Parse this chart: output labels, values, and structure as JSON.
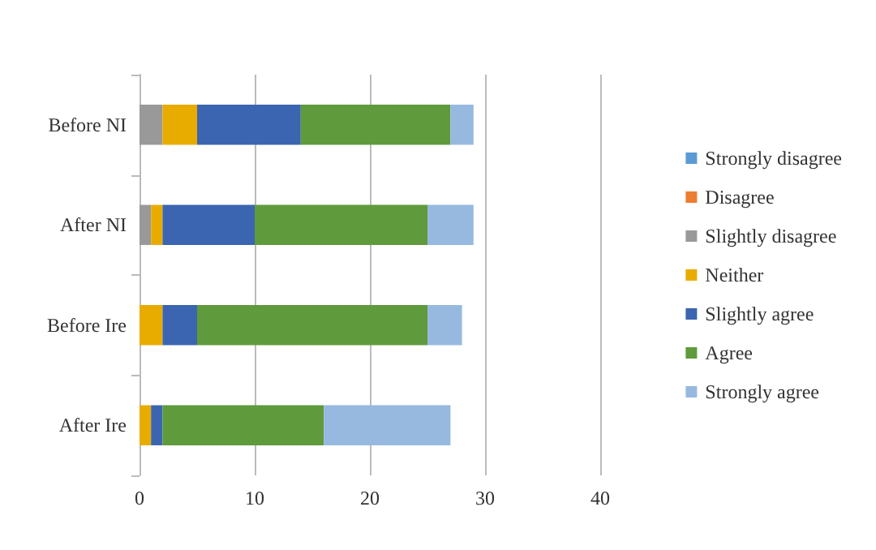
{
  "chart_data": {
    "type": "bar",
    "orientation": "horizontal",
    "stacked": true,
    "categories": [
      "Before NI",
      "After NI",
      "Before Ire",
      "After Ire"
    ],
    "series": [
      {
        "name": "Strongly disagree",
        "color": "#5b9bd5",
        "values": [
          0,
          0,
          0,
          0
        ]
      },
      {
        "name": "Disagree",
        "color": "#ed7d31",
        "values": [
          0,
          0,
          0,
          0
        ]
      },
      {
        "name": "Slightly disagree",
        "color": "#999999",
        "values": [
          2,
          1,
          0,
          0
        ]
      },
      {
        "name": "Neither",
        "color": "#e8ac00",
        "values": [
          3,
          1,
          2,
          1
        ]
      },
      {
        "name": "Slightly agree",
        "color": "#3b65b0",
        "values": [
          9,
          8,
          3,
          1
        ]
      },
      {
        "name": "Agree",
        "color": "#5f9a3c",
        "values": [
          13,
          15,
          20,
          14
        ]
      },
      {
        "name": "Strongly agree",
        "color": "#97b9e0",
        "values": [
          2,
          4,
          3,
          11
        ]
      }
    ],
    "xlim": [
      0,
      40
    ],
    "xticks": [
      0,
      10,
      20,
      30,
      40
    ],
    "grid": "x",
    "legend": "right"
  }
}
